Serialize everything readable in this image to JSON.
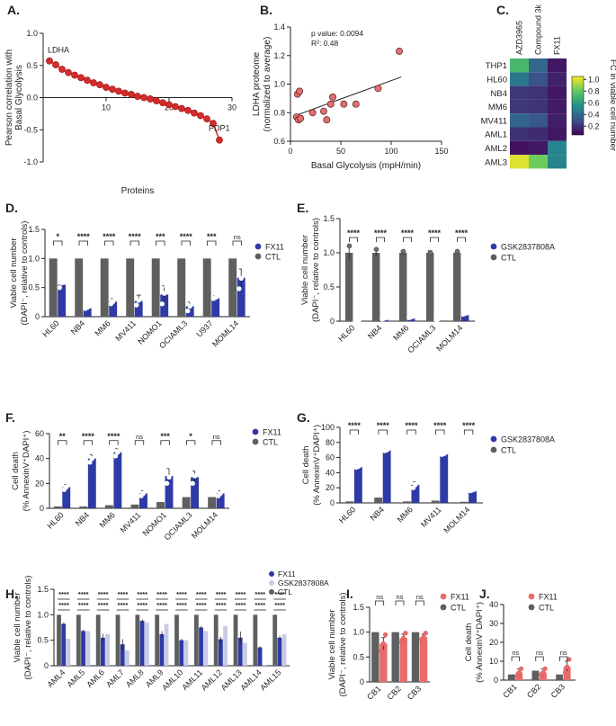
{
  "colors": {
    "red": "#d42b2b",
    "red_edge": "#9c1515",
    "ctl": "#5f5f5f",
    "blue": "#2e3aa6",
    "light": "#c8cbe6",
    "pink": "#e86a6a"
  },
  "chart_data": [
    {
      "id": "A",
      "panel_label": "A.",
      "type": "line",
      "ylabel": [
        "Pearson correlation with",
        "Basal Glycolysis"
      ],
      "xlabel": "Proteins",
      "xlim": [
        0,
        30
      ],
      "ylim": [
        -1.0,
        1.0
      ],
      "xticks": [
        10,
        20,
        30
      ],
      "xticklabels": [
        "10",
        "20",
        "30"
      ],
      "yticks": [
        -1.0,
        -0.5,
        0.0,
        0.5,
        1.0
      ],
      "yticklabels": [
        "-1.0",
        "-0.5",
        "0.0",
        "0.5",
        "1.0"
      ],
      "x": [
        1,
        2,
        3,
        4,
        5,
        6,
        7,
        8,
        9,
        10,
        11,
        12,
        13,
        14,
        15,
        16,
        17,
        18,
        19,
        20,
        21,
        22,
        23,
        24,
        25,
        26,
        27,
        28
      ],
      "values": [
        0.57,
        0.51,
        0.44,
        0.39,
        0.35,
        0.31,
        0.27,
        0.23,
        0.2,
        0.16,
        0.13,
        0.1,
        0.07,
        0.05,
        0.02,
        0.0,
        -0.02,
        -0.05,
        -0.08,
        -0.11,
        -0.14,
        -0.17,
        -0.2,
        -0.24,
        -0.28,
        -0.33,
        -0.4,
        -0.66
      ],
      "annotations": [
        {
          "text": "LDHA",
          "x": 1,
          "y": 0.57
        },
        {
          "text": "PDP1",
          "x": 28,
          "y": -0.66
        }
      ]
    },
    {
      "id": "B",
      "panel_label": "B.",
      "type": "scatter",
      "ylabel": [
        "LDHA  proteome",
        "(normalized to average)"
      ],
      "xlabel": "Basal Glycolysis (mpH/min)",
      "xlim": [
        0,
        150
      ],
      "ylim": [
        0.6,
        1.4
      ],
      "xticks": [
        0,
        50,
        100,
        150
      ],
      "xticklabels": [
        "0",
        "50",
        "100",
        "150"
      ],
      "yticks": [
        0.6,
        0.8,
        1.0,
        1.2,
        1.4
      ],
      "yticklabels": [
        "0.6",
        "0.8",
        "1.0",
        "1.2",
        "1.4"
      ],
      "x": [
        6,
        7,
        9,
        8,
        10,
        22,
        33,
        36,
        40,
        42,
        53,
        65,
        87,
        108
      ],
      "values": [
        0.77,
        0.93,
        0.95,
        0.75,
        0.76,
        0.8,
        0.81,
        0.75,
        0.86,
        0.91,
        0.86,
        0.86,
        0.97,
        1.23
      ],
      "fit": {
        "x": [
          5,
          110
        ],
        "y": [
          0.78,
          1.05
        ]
      },
      "stats": [
        "p value:  0.0094",
        "R²: 0.48"
      ]
    },
    {
      "id": "C",
      "panel_label": "C.",
      "type": "heatmap",
      "columns": [
        "AZD3965",
        "Compound 3k",
        "FX11"
      ],
      "rows": [
        "THP1",
        "HL60",
        "NB4",
        "MM6",
        "MV411",
        "AML1",
        "AML2",
        "AML3"
      ],
      "values": [
        [
          0.72,
          0.38,
          0.12
        ],
        [
          0.45,
          0.3,
          0.15
        ],
        [
          0.22,
          0.2,
          0.12
        ],
        [
          0.22,
          0.2,
          0.13
        ],
        [
          0.38,
          0.32,
          0.14
        ],
        [
          0.2,
          0.18,
          0.12
        ],
        [
          0.1,
          0.12,
          0.5
        ],
        [
          1.0,
          0.82,
          0.5
        ]
      ],
      "colorbar": {
        "label": "FC in viable cell number",
        "min": 0.05,
        "max": 1.05,
        "ticks": [
          0.2,
          0.4,
          0.6,
          0.8,
          1.0
        ],
        "ticklabels": [
          "0.2",
          "0.4",
          "0.6",
          "0.8",
          "1.0"
        ]
      }
    },
    {
      "id": "D",
      "panel_label": "D.",
      "type": "bar",
      "ylabel": [
        "Viable cell number",
        "(DAPI⁻, relative to controls)"
      ],
      "ylim": [
        0,
        1.5
      ],
      "yticks": [
        0,
        0.5,
        1.0,
        1.5
      ],
      "yticklabels": [
        "0",
        "0.5",
        "1.0",
        "1.5"
      ],
      "categories": [
        "HL60",
        "NB4",
        "MM6",
        "MV411",
        "NOMO1",
        "OCIAML3",
        "U937",
        "MOML14"
      ],
      "series": [
        {
          "name": "CTL",
          "color": "ctl",
          "values": [
            1,
            1,
            1,
            1,
            1,
            1,
            1,
            1
          ]
        },
        {
          "name": "FX11",
          "color": "blue",
          "values": [
            0.55,
            0.15,
            0.26,
            0.27,
            0.38,
            0.18,
            0.33,
            0.67
          ],
          "err": [
            0.05,
            0.02,
            0.05,
            0.1,
            0.15,
            0.07,
            0.03,
            0.15
          ]
        }
      ],
      "points": [
        [
          0.5,
          0.58,
          0.6
        ],
        [
          0.14,
          0.16,
          0.18
        ],
        [
          0.22,
          0.26,
          0.31
        ],
        [
          0.2,
          0.28,
          0.45
        ],
        [
          0.22,
          0.4,
          0.52
        ],
        [
          0.1,
          0.18,
          0.26
        ],
        [
          0.31,
          0.33,
          0.35
        ],
        [
          0.48,
          0.66,
          0.85
        ]
      ],
      "sig": [
        "*",
        "****",
        "****",
        "****",
        "***",
        "****",
        "***",
        "ns"
      ],
      "legend": [
        "FX11",
        "CTL"
      ]
    },
    {
      "id": "E",
      "panel_label": "E.",
      "type": "bar",
      "ylabel": [
        "Viable cell number",
        "(DAPI⁻, relative to controls)"
      ],
      "ylim": [
        0,
        1.5
      ],
      "yticks": [
        0,
        0.5,
        1.0,
        1.5
      ],
      "yticklabels": [
        "0",
        "0.5",
        "1.0",
        "1.5"
      ],
      "categories": [
        "HL60",
        "NB4",
        "MM6",
        "OCIAML3",
        "MOLM14"
      ],
      "series": [
        {
          "name": "CTL",
          "color": "ctl",
          "values": [
            1,
            1,
            1,
            1,
            1
          ],
          "err": [
            0.1,
            0.05,
            0.03,
            0.03,
            0.02
          ]
        },
        {
          "name": "GSK2837808A",
          "color": "blue",
          "values": [
            0.02,
            0.04,
            0.06,
            0.03,
            0.11
          ]
        }
      ],
      "points": [
        [
          0.01,
          0.02,
          0.02
        ],
        [
          0.03,
          0.04,
          0.05
        ],
        [
          0.05,
          0.06,
          0.07
        ],
        [
          0.02,
          0.03,
          0.04
        ],
        [
          0.1,
          0.11,
          0.12
        ]
      ],
      "sig": [
        "****",
        "****",
        "****",
        "****",
        "****"
      ],
      "legend": [
        "GSK2837808A",
        "CTL"
      ]
    },
    {
      "id": "F",
      "panel_label": "F.",
      "type": "bar",
      "ylabel": [
        "Cell death",
        "(% AnnexinV⁺DAPI⁺)"
      ],
      "ylim": [
        0,
        60
      ],
      "yticks": [
        0,
        20,
        40,
        60
      ],
      "yticklabels": [
        "0",
        "20",
        "40",
        "60"
      ],
      "categories": [
        "HL60",
        "NB4",
        "MM6",
        "MV411",
        "NOMO1",
        "OCIAML3",
        "MOLM14"
      ],
      "series": [
        {
          "name": "CTL",
          "color": "ctl",
          "values": [
            1.5,
            1.5,
            2.5,
            3,
            5,
            9,
            9
          ]
        },
        {
          "name": "FX11",
          "color": "blue",
          "values": [
            17,
            40,
            45,
            12,
            26,
            25,
            12
          ],
          "err": [
            2,
            3,
            3,
            2,
            6,
            5,
            2
          ]
        }
      ],
      "points": [
        [
          15,
          17,
          19
        ],
        [
          37,
          40,
          44
        ],
        [
          42,
          45,
          48
        ],
        [
          10,
          12,
          14
        ],
        [
          20,
          25,
          33
        ],
        [
          20,
          26,
          31
        ],
        [
          10,
          12,
          14
        ]
      ],
      "sig": [
        "**",
        "****",
        "****",
        "ns",
        "***",
        "*",
        "ns"
      ],
      "legend": [
        "FX11",
        "CTL"
      ]
    },
    {
      "id": "G",
      "panel_label": "G.",
      "type": "bar",
      "ylabel": [
        "Cell death",
        "(% AnnexinV⁺DAPI⁺)"
      ],
      "ylim": [
        0,
        100
      ],
      "yticks": [
        0,
        20,
        40,
        60,
        80,
        100
      ],
      "yticklabels": [
        "0",
        "20",
        "40",
        "60",
        "80",
        "100"
      ],
      "categories": [
        "HL60",
        "NB4",
        "MM6",
        "MV411",
        "MOLM14"
      ],
      "series": [
        {
          "name": "CTL",
          "color": "ctl",
          "values": [
            2,
            7,
            2,
            3,
            1.5
          ]
        },
        {
          "name": "GSK2837808A",
          "color": "blue",
          "values": [
            48,
            70,
            24,
            65,
            17
          ],
          "err": [
            2,
            2,
            4,
            2,
            2
          ]
        }
      ],
      "points": [
        [
          47,
          48,
          50
        ],
        [
          69,
          70,
          72
        ],
        [
          20,
          24,
          28
        ],
        [
          64,
          65,
          67
        ],
        [
          16,
          17,
          18
        ]
      ],
      "sig": [
        "****",
        "****",
        "****",
        "****",
        "****"
      ],
      "legend": [
        "GSK2837808A",
        "CTL"
      ]
    },
    {
      "id": "H",
      "panel_label": "H.",
      "type": "bar",
      "ylabel": [
        "Viable cell number",
        "(DAPI⁻, relative to controls)"
      ],
      "ylim": [
        0,
        1.5
      ],
      "yticks": [
        0,
        0.5,
        1.0,
        1.5
      ],
      "yticklabels": [
        "0",
        "0.5",
        "1.0",
        "1.5"
      ],
      "categories": [
        "AML4",
        "AML5",
        "AML6",
        "AML7",
        "AML8",
        "AML9",
        "AML10",
        "AML11",
        "AML12",
        "AML13",
        "AML14",
        "AML15"
      ],
      "series": [
        {
          "name": "CTL",
          "color": "ctl",
          "values": [
            1,
            1,
            1,
            1,
            1,
            1,
            1,
            1,
            1,
            1,
            1,
            1
          ]
        },
        {
          "name": "FX11",
          "color": "blue",
          "values": [
            0.82,
            0.68,
            0.55,
            0.42,
            0.88,
            0.62,
            0.5,
            0.75,
            0.52,
            0.55,
            0.36,
            0.55
          ],
          "err": [
            0.03,
            0.03,
            0.08,
            0.1,
            0.03,
            0.06,
            0.03,
            0.03,
            0.05,
            0.12,
            0.02,
            0.04
          ]
        },
        {
          "name": "GSK2837808A",
          "color": "light",
          "values": [
            0.53,
            0.68,
            0.62,
            0.3,
            0.85,
            0.82,
            0.5,
            0.68,
            0.78,
            0.45,
            0.02,
            0.62
          ]
        }
      ],
      "sig_top": [
        "****",
        "****",
        "****",
        "****",
        "****",
        "****",
        "****",
        "****",
        "****",
        "****",
        "****",
        "****"
      ],
      "sig_bottom": [
        "****",
        "****",
        "****",
        "****",
        "****",
        "****",
        "****",
        "****",
        "****",
        "****",
        "****",
        "****"
      ],
      "legend": [
        "FX11",
        "GSK2837808A",
        "CTL"
      ]
    },
    {
      "id": "I",
      "panel_label": "I.",
      "type": "bar",
      "ylabel": [
        "Viable cell number",
        "(DAPI⁻, relative to controls)"
      ],
      "ylim": [
        0,
        1.5
      ],
      "yticks": [
        0,
        0.5,
        1.0,
        1.5
      ],
      "yticklabels": [
        "0",
        "0.5",
        "1.0",
        "1.5"
      ],
      "categories": [
        "CB1",
        "CB2",
        "CB3"
      ],
      "series": [
        {
          "name": "CTL",
          "color": "ctl",
          "values": [
            1,
            1,
            1
          ]
        },
        {
          "name": "FX11",
          "color": "pink",
          "values": [
            0.77,
            0.88,
            0.9
          ],
          "err": [
            0.12,
            0.08,
            0.06
          ]
        }
      ],
      "points": [
        [
          0.62,
          0.77,
          0.95
        ],
        [
          0.8,
          0.88,
          0.98
        ],
        [
          0.85,
          0.9,
          0.98
        ]
      ],
      "sig": [
        "ns",
        "ns",
        "ns"
      ],
      "legend": [
        "FX11",
        "CTL"
      ]
    },
    {
      "id": "J",
      "panel_label": "J.",
      "type": "bar",
      "ylabel": [
        "Cell death",
        "(% AnnexinV⁺DAPI⁺)"
      ],
      "ylim": [
        0,
        40
      ],
      "yticks": [
        0,
        10,
        20,
        30,
        40
      ],
      "yticklabels": [
        "0",
        "10",
        "20",
        "30",
        "40"
      ],
      "categories": [
        "CB1",
        "CB2",
        "CB3"
      ],
      "series": [
        {
          "name": "CTL",
          "color": "ctl",
          "values": [
            3,
            5,
            3
          ]
        },
        {
          "name": "FX11",
          "color": "pink",
          "values": [
            4,
            4,
            7
          ],
          "err": [
            2,
            2,
            3
          ]
        }
      ],
      "points": [
        [
          2,
          4,
          6
        ],
        [
          3,
          4,
          6
        ],
        [
          4,
          7,
          11
        ]
      ],
      "sig": [
        "ns",
        "ns",
        "ns"
      ],
      "legend": [
        "FX11",
        "CTL"
      ]
    }
  ]
}
